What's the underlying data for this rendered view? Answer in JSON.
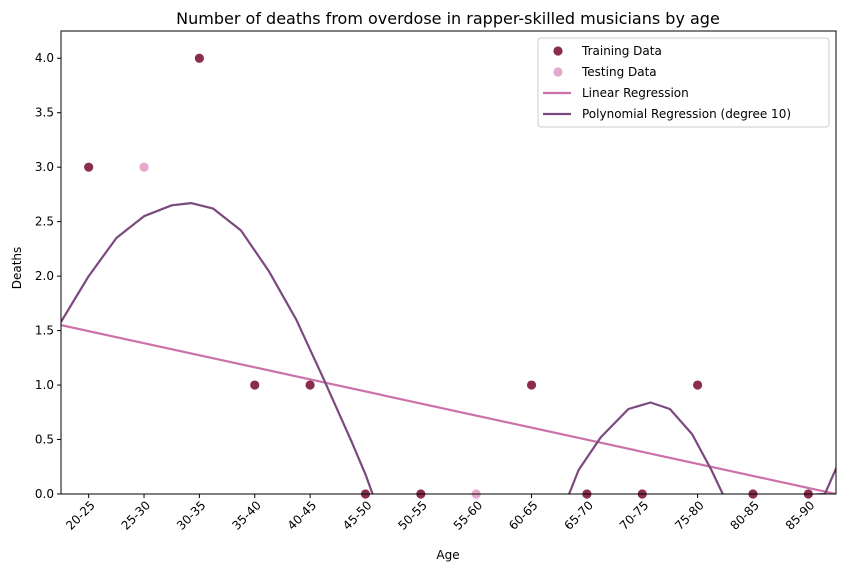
{
  "chart_data": {
    "type": "scatter",
    "title": "Number of deaths from overdose in rapper-skilled musicians by age",
    "xlabel": "Age",
    "ylabel": "Deaths",
    "categories": [
      "20-25",
      "25-30",
      "30-35",
      "35-40",
      "40-45",
      "45-50",
      "50-55",
      "55-60",
      "60-65",
      "65-70",
      "70-75",
      "75-80",
      "80-85",
      "85-90"
    ],
    "x_range": [
      -0.5,
      13.5
    ],
    "ylim": [
      0,
      4.25
    ],
    "y_ticks": [
      "0.0",
      "0.5",
      "1.0",
      "1.5",
      "2.0",
      "2.5",
      "3.0",
      "3.5",
      "4.0"
    ],
    "legend_position": "top-right",
    "series": [
      {
        "name": "Training Data",
        "kind": "scatter",
        "color": "#8b2d4f",
        "points": [
          [
            0,
            3
          ],
          [
            2,
            4
          ],
          [
            3,
            1
          ],
          [
            4,
            1
          ],
          [
            5,
            0
          ],
          [
            6,
            0
          ],
          [
            8,
            1
          ],
          [
            9,
            0
          ],
          [
            10,
            0
          ],
          [
            11,
            1
          ],
          [
            12,
            0
          ],
          [
            13,
            0
          ]
        ]
      },
      {
        "name": "Testing Data",
        "kind": "scatter",
        "color": "#e6a8cc",
        "points": [
          [
            1,
            3
          ],
          [
            7,
            0
          ]
        ]
      },
      {
        "name": "Linear Regression",
        "kind": "line",
        "color": "#cc72a8",
        "points": [
          [
            -0.5,
            1.55
          ],
          [
            13.5,
            0.0
          ]
        ]
      },
      {
        "name": "Polynomial Regression (degree 10)",
        "kind": "line",
        "color": "#7a4a7e",
        "points": [
          [
            -0.5,
            1.58
          ],
          [
            0,
            2.0
          ],
          [
            0.5,
            2.35
          ],
          [
            1,
            2.55
          ],
          [
            1.5,
            2.65
          ],
          [
            1.85,
            2.67
          ],
          [
            2.25,
            2.62
          ],
          [
            2.75,
            2.42
          ],
          [
            3.25,
            2.05
          ],
          [
            3.75,
            1.6
          ],
          [
            4.25,
            1.05
          ],
          [
            4.75,
            0.48
          ],
          [
            5,
            0.18
          ],
          [
            5.2,
            -0.1
          ],
          [
            8.6,
            -0.1
          ],
          [
            8.85,
            0.22
          ],
          [
            9.25,
            0.52
          ],
          [
            9.75,
            0.78
          ],
          [
            10.15,
            0.84
          ],
          [
            10.5,
            0.78
          ],
          [
            10.9,
            0.55
          ],
          [
            11.25,
            0.22
          ],
          [
            11.5,
            -0.05
          ],
          [
            13.3,
            0.0
          ],
          [
            13.6,
            0.35
          ],
          [
            13.82,
            0.55
          ],
          [
            14.0,
            0.64
          ]
        ]
      }
    ]
  }
}
